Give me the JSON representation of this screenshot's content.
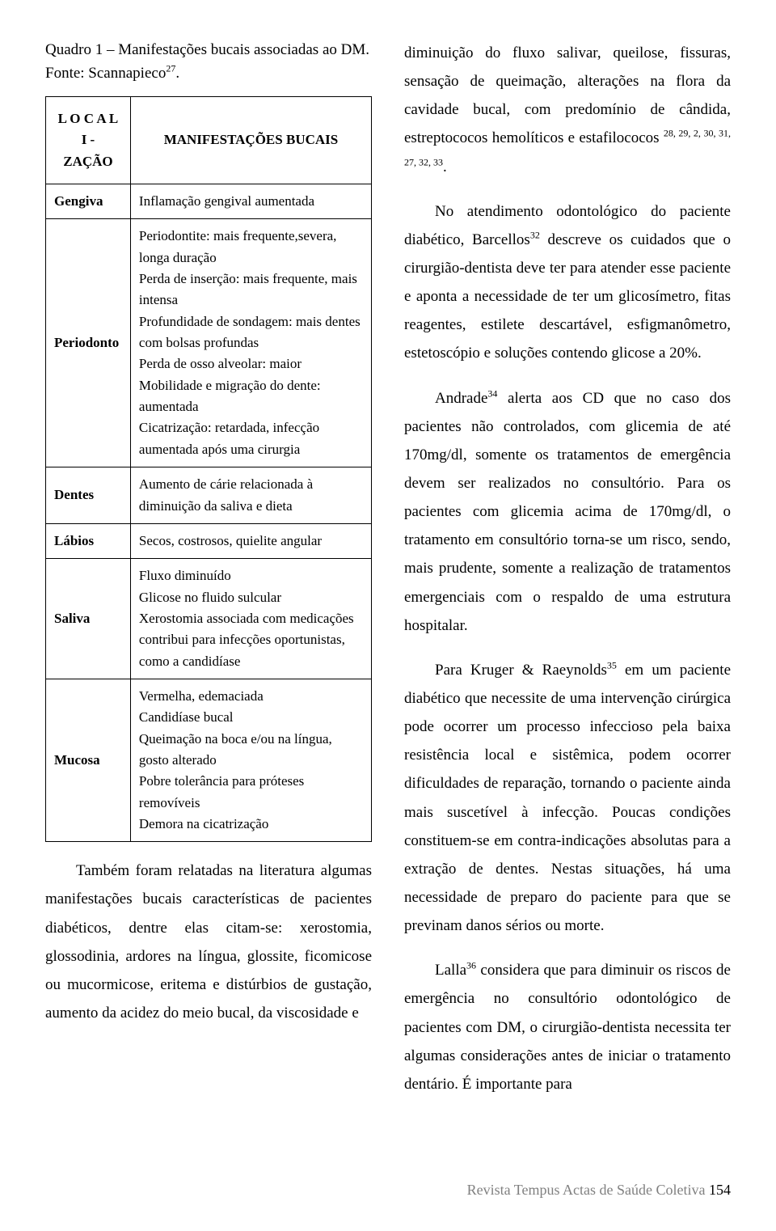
{
  "caption": {
    "prefix": "    Quadro 1 – Manifestações bucais associadas ao DM. Fonte: Scannapieco",
    "sup": "27",
    "suffix": "."
  },
  "table": {
    "headers": {
      "loc_line1": "L O C A L I -",
      "loc_line2": "ZAÇÃO",
      "manif": "MANIFESTAÇÕES BUCAIS"
    },
    "rows": [
      {
        "loc": "Gengiva",
        "manif_lines": [
          "Inflamação gengival aumentada"
        ]
      },
      {
        "loc": "Periodonto",
        "manif_lines": [
          "Periodontite: mais frequente,severa, longa duração",
          "Perda de inserção: mais frequente, mais intensa",
          "Profundidade de sondagem: mais dentes com bolsas profundas",
          "Perda de osso alveolar: maior",
          "Mobilidade e migração do dente: aumentada",
          "Cicatrização: retardada, infecção aumentada após uma cirurgia"
        ]
      },
      {
        "loc": "Dentes",
        "manif_lines": [
          "Aumento de cárie relacionada à diminuição da saliva e dieta"
        ]
      },
      {
        "loc": "Lábios",
        "manif_lines": [
          "Secos, costrosos, quielite angular"
        ]
      },
      {
        "loc": "Saliva",
        "manif_lines": [
          "Fluxo diminuído",
          "Glicose no fluido sulcular",
          "Xerostomia associada com medicações contribui para infecções oportunistas, como a candidíase"
        ]
      },
      {
        "loc": "Mucosa",
        "manif_lines": [
          "Vermelha, edemaciada",
          "Candidíase bucal",
          "Queimação na boca e/ou na língua, gosto alterado",
          "Pobre tolerância para próteses removíveis",
          "Demora na cicatrização"
        ]
      }
    ]
  },
  "left_paragraphs": [
    {
      "segments": [
        {
          "text": "Também foram relatadas na literatura algumas manifestações bucais características de pacientes diabéticos, dentre elas citam-se: xerostomia, glossodinia, ardores na língua, glossite, ficomicose ou mucormicose, eritema e distúrbios de gustação, aumento da acidez do meio bucal, da viscosidade e "
        }
      ]
    }
  ],
  "right_paragraphs": [
    {
      "class": "continuation",
      "segments": [
        {
          "text": "diminuição do fluxo salivar, queilose, fissuras, sensação de queimação, alterações na flora da cavidade bucal, com predomínio de cândida, estreptococos hemolíticos e estafilococos "
        },
        {
          "sup": "28, 29, 2, 30, 31, 27, 32, 33"
        },
        {
          "text": "."
        }
      ]
    },
    {
      "segments": [
        {
          "text": "No atendimento odontológico do paciente diabético, Barcellos"
        },
        {
          "sup": "32"
        },
        {
          "text": " descreve os cuidados que o cirurgião-dentista deve ter para atender esse paciente e aponta a necessidade de ter um glicosímetro, fitas reagentes, estilete descartável, esfigmanômetro, estetoscópio e soluções contendo glicose a 20%."
        }
      ]
    },
    {
      "segments": [
        {
          "text": "Andrade"
        },
        {
          "sup": "34"
        },
        {
          "text": " alerta aos CD que no caso dos pacientes não controlados, com glicemia de até 170mg/dl, somente os tratamentos de emergência devem ser realizados no consultório. Para os pacientes com glicemia acima de 170mg/dl, o tratamento em consultório torna-se um risco, sendo, mais prudente, somente a realização de tratamentos emergenciais com o respaldo de uma estrutura hospitalar."
        }
      ]
    },
    {
      "segments": [
        {
          "text": "Para Kruger & Raeynolds"
        },
        {
          "sup": "35"
        },
        {
          "text": " em um paciente diabético que necessite de uma intervenção cirúrgica pode ocorrer um processo infeccioso pela baixa resistência local e sistêmica, podem ocorrer dificuldades de reparação, tornando o paciente ainda mais suscetível à infecção. Poucas condições constituem-se em contra-indicações absolutas para a extração de dentes. Nestas situações, há uma necessidade de preparo do paciente para que se previnam danos sérios ou morte."
        }
      ]
    },
    {
      "segments": [
        {
          "text": "Lalla"
        },
        {
          "sup": "36"
        },
        {
          "text": " considera que para diminuir os riscos de emergência no consultório odontológico de pacientes com DM, o cirurgião-dentista necessita ter algumas considerações antes de iniciar o tratamento dentário. É importante para"
        }
      ]
    }
  ],
  "footer": {
    "journal": "Revista Tempus Actas de Saúde Coletiva  ",
    "page": "154"
  }
}
